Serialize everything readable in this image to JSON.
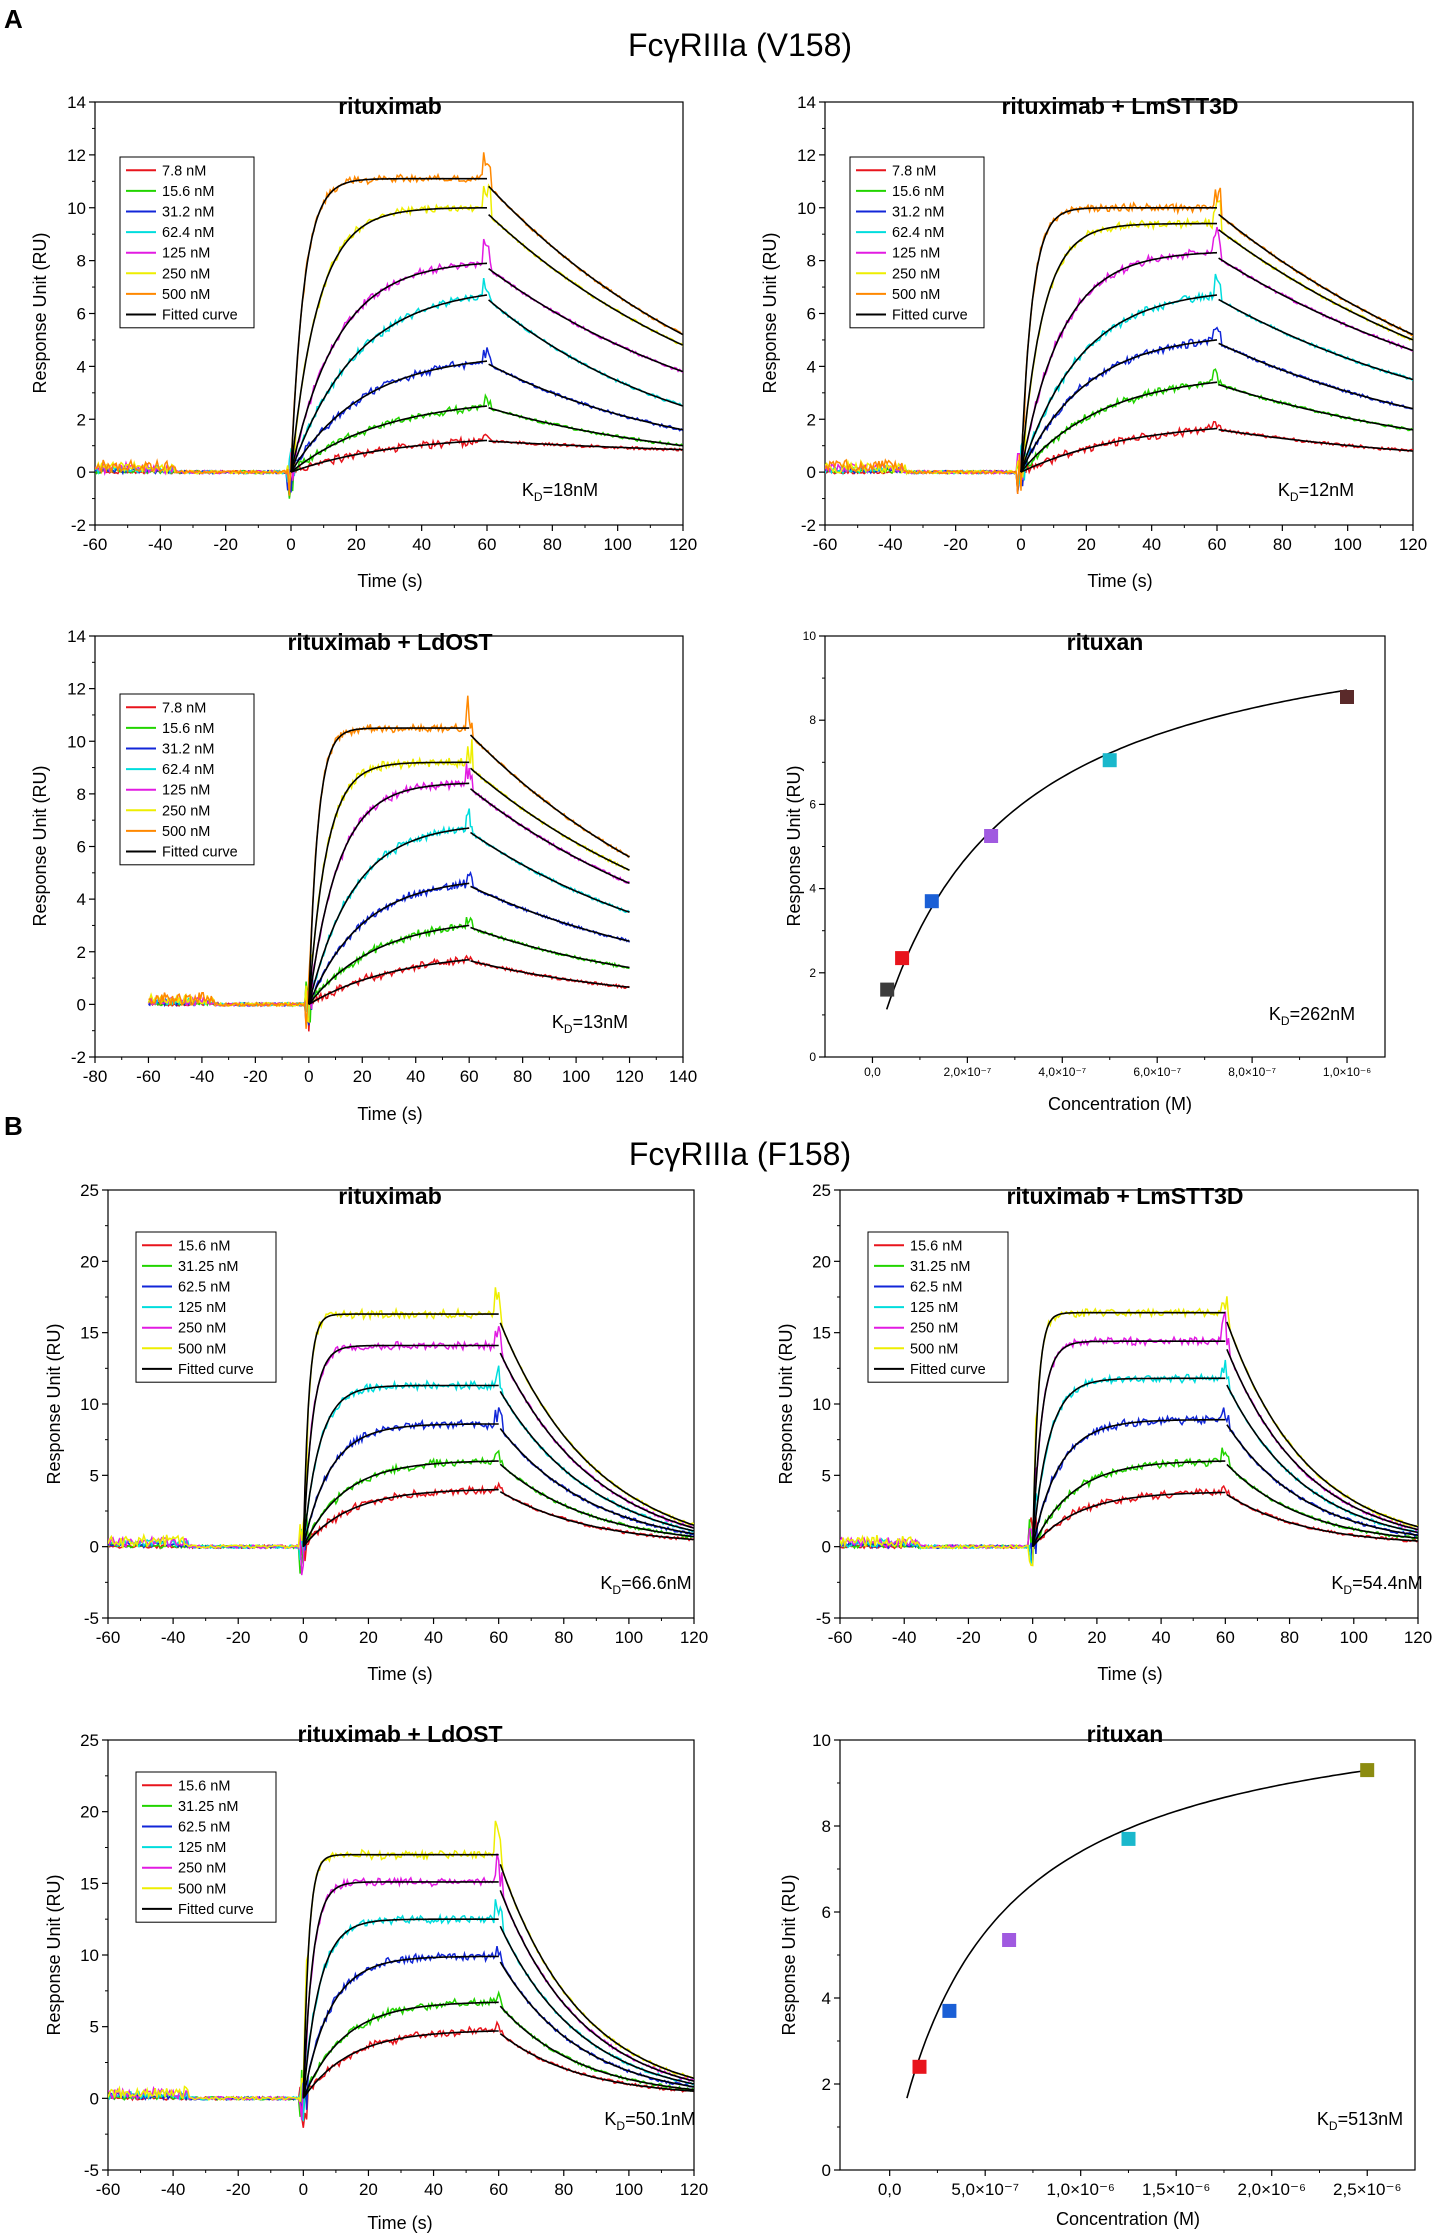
{
  "sections": [
    {
      "letter": "A",
      "title": "FcγRIIIa (V158)"
    },
    {
      "letter": "B",
      "title": "FcγRIIIa (F158)"
    }
  ],
  "colors": {
    "conc": [
      "#e8141c",
      "#22d400",
      "#1126d8",
      "#00dddd",
      "#e21be2",
      "#eeee00",
      "#ff8800"
    ],
    "conc_f158": [
      "#e8141c",
      "#22d400",
      "#1126d8",
      "#00dddd",
      "#e21be2",
      "#eeee00"
    ],
    "fit": "#000000",
    "steady_markers_a": [
      "#3c3c3c",
      "#e8141c",
      "#1a5fd6",
      "#a05ae0",
      "#1ab8cc",
      "#5a2a2a"
    ],
    "steady_markers_b": [
      "#e8141c",
      "#1a5fd6",
      "#a05ae0",
      "#1ab8cc",
      "#8c8c10"
    ]
  },
  "chart_data": [
    {
      "id": "a1",
      "type": "line",
      "section": "A",
      "title": "rituximab",
      "xlabel": "Time (s)",
      "ylabel": "Response Unit (RU)",
      "xlim": [
        -60,
        120
      ],
      "ylim": [
        -2,
        14
      ],
      "xticks": [
        -60,
        -40,
        -20,
        0,
        20,
        40,
        60,
        80,
        100,
        120
      ],
      "yticks": [
        -2,
        0,
        2,
        4,
        6,
        8,
        10,
        12,
        14
      ],
      "legend": [
        "7.8 nM",
        "15.6 nM",
        "31.2 nM",
        "62.4 nM",
        "125 nM",
        "250 nM",
        "500 nM",
        "Fitted curve"
      ],
      "kd": {
        "prefix": "K",
        "sub": "D",
        "suffix": "=18nM"
      },
      "series": [
        {
          "name": "7.8 nM",
          "plateau": 1.2,
          "end": 0.85,
          "ka": 0.032,
          "kd": 0.0075
        },
        {
          "name": "15.6 nM",
          "plateau": 2.5,
          "end": 1.0,
          "ka": 0.035,
          "kd": 0.015
        },
        {
          "name": "31.2 nM",
          "plateau": 4.2,
          "end": 1.6,
          "ka": 0.045,
          "kd": 0.016
        },
        {
          "name": "62.4 nM",
          "plateau": 6.7,
          "end": 2.5,
          "ka": 0.05,
          "kd": 0.016
        },
        {
          "name": "125 nM",
          "plateau": 7.9,
          "end": 3.8,
          "ka": 0.07,
          "kd": 0.012
        },
        {
          "name": "250 nM",
          "plateau": 10.0,
          "end": 4.8,
          "ka": 0.12,
          "kd": 0.012
        },
        {
          "name": "500 nM",
          "plateau": 11.1,
          "end": 5.2,
          "ka": 0.25,
          "kd": 0.012
        }
      ]
    },
    {
      "id": "a2",
      "type": "line",
      "section": "A",
      "title": "rituximab + LmSTT3D",
      "xlabel": "Time (s)",
      "ylabel": "Response Unit (RU)",
      "xlim": [
        -60,
        120
      ],
      "ylim": [
        -2,
        14
      ],
      "xticks": [
        -60,
        -40,
        -20,
        0,
        20,
        40,
        60,
        80,
        100,
        120
      ],
      "yticks": [
        -2,
        0,
        2,
        4,
        6,
        8,
        10,
        12,
        14
      ],
      "legend": [
        "7.8 nM",
        "15.6 nM",
        "31.2 nM",
        "62.4 nM",
        "125 nM",
        "250 nM",
        "500 nM",
        "Fitted curve"
      ],
      "kd": {
        "prefix": "K",
        "sub": "D",
        "suffix": "=12nM"
      },
      "series": [
        {
          "name": "7.8 nM",
          "plateau": 1.65,
          "end": 0.8,
          "ka": 0.03,
          "kd": 0.012
        },
        {
          "name": "15.6 nM",
          "plateau": 3.4,
          "end": 1.6,
          "ka": 0.04,
          "kd": 0.012
        },
        {
          "name": "31.2 nM",
          "plateau": 5.0,
          "end": 2.4,
          "ka": 0.05,
          "kd": 0.012
        },
        {
          "name": "62.4 nM",
          "plateau": 6.7,
          "end": 3.5,
          "ka": 0.055,
          "kd": 0.011
        },
        {
          "name": "125 nM",
          "plateau": 8.3,
          "end": 4.6,
          "ka": 0.08,
          "kd": 0.01
        },
        {
          "name": "250 nM",
          "plateau": 9.4,
          "end": 5.0,
          "ka": 0.15,
          "kd": 0.01
        },
        {
          "name": "500 nM",
          "plateau": 10.0,
          "end": 5.2,
          "ka": 0.3,
          "kd": 0.01
        }
      ]
    },
    {
      "id": "a3",
      "type": "line",
      "section": "A",
      "title": "rituximab + LdOST",
      "xlabel": "Time (s)",
      "ylabel": "Response Unit (RU)",
      "xlim": [
        -80,
        140
      ],
      "ylim": [
        -2,
        14
      ],
      "xticks": [
        -80,
        -60,
        -40,
        -20,
        0,
        20,
        40,
        60,
        80,
        100,
        120,
        140
      ],
      "yticks": [
        -2,
        0,
        2,
        4,
        6,
        8,
        10,
        12,
        14
      ],
      "legend": [
        "7.8 nM",
        "15.6 nM",
        "31.2 nM",
        "62.4 nM",
        "125 nM",
        "250 nM",
        "500 nM",
        "Fitted curve"
      ],
      "kd": {
        "prefix": "K",
        "sub": "D",
        "suffix": "=13nM"
      },
      "series": [
        {
          "name": "7.8 nM",
          "plateau": 1.7,
          "end": 0.65,
          "ka": 0.03,
          "kd": 0.015
        },
        {
          "name": "15.6 nM",
          "plateau": 3.0,
          "end": 1.4,
          "ka": 0.04,
          "kd": 0.013
        },
        {
          "name": "31.2 nM",
          "plateau": 4.6,
          "end": 2.4,
          "ka": 0.05,
          "kd": 0.011
        },
        {
          "name": "62.4 nM",
          "plateau": 6.7,
          "end": 3.5,
          "ka": 0.06,
          "kd": 0.011
        },
        {
          "name": "125 nM",
          "plateau": 8.4,
          "end": 4.6,
          "ka": 0.09,
          "kd": 0.01
        },
        {
          "name": "250 nM",
          "plateau": 9.2,
          "end": 5.1,
          "ka": 0.15,
          "kd": 0.01
        },
        {
          "name": "500 nM",
          "plateau": 10.5,
          "end": 5.6,
          "ka": 0.3,
          "kd": 0.01
        }
      ]
    },
    {
      "id": "a4",
      "type": "scatter",
      "section": "A",
      "title": "rituxan",
      "xlabel": "Concentration (M)",
      "ylabel": "Response Unit (RU)",
      "xlim": [
        -1e-07,
        1.08e-06
      ],
      "ylim": [
        0,
        10
      ],
      "xticks": [
        0,
        2e-07,
        4e-07,
        6e-07,
        8e-07,
        1e-06
      ],
      "xtick_labels": [
        "0,0",
        "2,0×10⁻⁷",
        "4,0×10⁻⁷",
        "6,0×10⁻⁷",
        "8,0×10⁻⁷",
        "1,0×10⁻⁶"
      ],
      "yticks": [
        0,
        2,
        4,
        6,
        8,
        10
      ],
      "kd": {
        "prefix": "K",
        "sub": "D",
        "suffix": "=262nM"
      },
      "fit": {
        "rmax": 11.0,
        "kd": 2.62e-07,
        "x_from": 3e-08,
        "x_to": 1e-06
      },
      "points": [
        {
          "x": 3.1e-08,
          "y": 1.6
        },
        {
          "x": 6.25e-08,
          "y": 2.35
        },
        {
          "x": 1.25e-07,
          "y": 3.7
        },
        {
          "x": 2.5e-07,
          "y": 5.25
        },
        {
          "x": 5e-07,
          "y": 7.05
        },
        {
          "x": 1e-06,
          "y": 8.55
        }
      ]
    },
    {
      "id": "b1",
      "type": "line",
      "section": "B",
      "title": "rituximab",
      "xlabel": "Time (s)",
      "ylabel": "Response Unit (RU)",
      "xlim": [
        -60,
        120
      ],
      "ylim": [
        -5,
        25
      ],
      "xticks": [
        -60,
        -40,
        -20,
        0,
        20,
        40,
        60,
        80,
        100,
        120
      ],
      "yticks": [
        -5,
        0,
        5,
        10,
        15,
        20,
        25
      ],
      "legend": [
        "15.6  nM",
        "31.25 nM",
        "62.5 nM",
        "125 nM",
        "250 nM",
        "500 nM",
        "Fitted curve"
      ],
      "kd": {
        "prefix": "K",
        "sub": "D",
        "suffix": "=66.6nM"
      },
      "series": [
        {
          "name": "15.6  nM",
          "plateau": 4.0,
          "end": 0.5,
          "ka": 0.07,
          "kd": 0.035
        },
        {
          "name": "31.25 nM",
          "plateau": 6.0,
          "end": 0.7,
          "ka": 0.08,
          "kd": 0.035
        },
        {
          "name": "62.5 nM",
          "plateau": 8.6,
          "end": 0.9,
          "ka": 0.12,
          "kd": 0.035
        },
        {
          "name": "125 nM",
          "plateau": 11.3,
          "end": 1.1,
          "ka": 0.2,
          "kd": 0.035
        },
        {
          "name": "250 nM",
          "plateau": 14.1,
          "end": 1.3,
          "ka": 0.35,
          "kd": 0.035
        },
        {
          "name": "500 nM",
          "plateau": 16.3,
          "end": 1.5,
          "ka": 0.6,
          "kd": 0.035
        }
      ]
    },
    {
      "id": "b2",
      "type": "line",
      "section": "B",
      "title": "rituximab + LmSTT3D",
      "xlabel": "Time (s)",
      "ylabel": "Response Unit (RU)",
      "xlim": [
        -60,
        120
      ],
      "ylim": [
        -5,
        25
      ],
      "xticks": [
        -60,
        -40,
        -20,
        0,
        20,
        40,
        60,
        80,
        100,
        120
      ],
      "yticks": [
        -5,
        0,
        5,
        10,
        15,
        20,
        25
      ],
      "legend": [
        "15.6  nM",
        "31.25 nM",
        "62.5 nM",
        "125 nM",
        "250 nM",
        "500 nM",
        "Fitted curve"
      ],
      "kd": {
        "prefix": "K",
        "sub": "D",
        "suffix": "=54.4nM"
      },
      "series": [
        {
          "name": "15.6  nM",
          "plateau": 3.8,
          "end": 0.4,
          "ka": 0.07,
          "kd": 0.04
        },
        {
          "name": "31.25 nM",
          "plateau": 6.0,
          "end": 0.6,
          "ka": 0.08,
          "kd": 0.04
        },
        {
          "name": "62.5 nM",
          "plateau": 8.9,
          "end": 0.8,
          "ka": 0.12,
          "kd": 0.04
        },
        {
          "name": "125 nM",
          "plateau": 11.8,
          "end": 1.0,
          "ka": 0.2,
          "kd": 0.04
        },
        {
          "name": "250 nM",
          "plateau": 14.4,
          "end": 1.2,
          "ka": 0.35,
          "kd": 0.04
        },
        {
          "name": "500 nM",
          "plateau": 16.4,
          "end": 1.4,
          "ka": 0.6,
          "kd": 0.04
        }
      ]
    },
    {
      "id": "b3",
      "type": "line",
      "section": "B",
      "title": "rituximab + LdOST",
      "xlabel": "Time (s)",
      "ylabel": "Response Unit (RU)",
      "xlim": [
        -60,
        120
      ],
      "ylim": [
        -5,
        25
      ],
      "xticks": [
        -60,
        -40,
        -20,
        0,
        20,
        40,
        60,
        80,
        100,
        120
      ],
      "yticks": [
        -5,
        0,
        5,
        10,
        15,
        20,
        25
      ],
      "legend": [
        "15.6  nM",
        "31.25 nM",
        "62.5 nM",
        "125 nM",
        "250 nM",
        "500 nM",
        "Fitted curve"
      ],
      "kd": {
        "prefix": "K",
        "sub": "D",
        "suffix": "=50.1nM"
      },
      "series": [
        {
          "name": "15.6  nM",
          "plateau": 4.7,
          "end": 0.5,
          "ka": 0.07,
          "kd": 0.04
        },
        {
          "name": "31.25 nM",
          "plateau": 6.7,
          "end": 0.6,
          "ka": 0.08,
          "kd": 0.04
        },
        {
          "name": "62.5 nM",
          "plateau": 9.9,
          "end": 0.8,
          "ka": 0.12,
          "kd": 0.04
        },
        {
          "name": "125 nM",
          "plateau": 12.5,
          "end": 1.0,
          "ka": 0.2,
          "kd": 0.04
        },
        {
          "name": "250 nM",
          "plateau": 15.1,
          "end": 1.2,
          "ka": 0.35,
          "kd": 0.04
        },
        {
          "name": "500 nM",
          "plateau": 17.0,
          "end": 1.4,
          "ka": 0.6,
          "kd": 0.04
        }
      ]
    },
    {
      "id": "b4",
      "type": "scatter",
      "section": "B",
      "title": "rituxan",
      "xlabel": "Concentration (M)",
      "ylabel": "Response Unit (RU)",
      "xlim": [
        -2.6e-07,
        2.75e-06
      ],
      "ylim": [
        0,
        10
      ],
      "xticks": [
        0,
        5e-07,
        1e-06,
        1.5e-06,
        2e-06,
        2.5e-06
      ],
      "xtick_labels": [
        "0,0",
        "5,0×10⁻⁷",
        "1,0×10⁻⁶",
        "1,5×10⁻⁶",
        "2,0×10⁻⁶",
        "2,5×10⁻⁶"
      ],
      "yticks": [
        0,
        2,
        4,
        6,
        8,
        10
      ],
      "kd": {
        "prefix": "K",
        "sub": "D",
        "suffix": "=513nM"
      },
      "fit": {
        "rmax": 11.2,
        "kd": 5.13e-07,
        "x_from": 9e-08,
        "x_to": 2.5e-06
      },
      "points": [
        {
          "x": 1.56e-07,
          "y": 2.4
        },
        {
          "x": 3.125e-07,
          "y": 3.7
        },
        {
          "x": 6.25e-07,
          "y": 5.35
        },
        {
          "x": 1.25e-06,
          "y": 7.7
        },
        {
          "x": 2.5e-06,
          "y": 9.3
        }
      ]
    }
  ]
}
